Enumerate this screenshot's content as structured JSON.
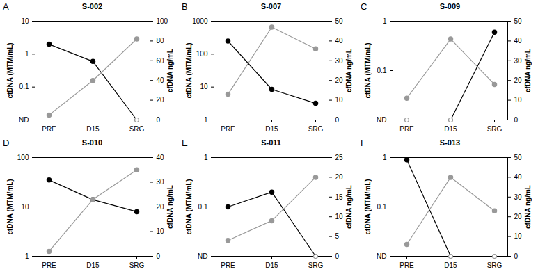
{
  "chart_data": [
    {
      "type": "line",
      "panel": "A",
      "title": "S-002",
      "log": "y",
      "categories": [
        "PRE",
        "D15",
        "SRG"
      ],
      "ylabel": "ctDNA (MTM/mL)",
      "y2label": "cfDNA ng/mL",
      "ylim": [
        0.01,
        10
      ],
      "yticks": [
        {
          "value": 0.01,
          "label": "ND"
        },
        0.1,
        1,
        10
      ],
      "y2lim": [
        0,
        100
      ],
      "y2ticks": [
        0,
        20,
        40,
        60,
        80,
        100
      ],
      "series": [
        {
          "color": "#000000",
          "marker": "circle",
          "line_style": "solid",
          "values": [
            2,
            0.6,
            0.01
          ]
        },
        {
          "color": "#999999",
          "marker": "circle",
          "line_style": "solid",
          "axis": "y2",
          "values": [
            5,
            40,
            82
          ]
        }
      ]
    },
    {
      "type": "line",
      "panel": "B",
      "title": "S-007",
      "log": "y",
      "categories": [
        "PRE",
        "D15",
        "SRG"
      ],
      "ylabel": "ctDNA (MTM/mL)",
      "y2label": "cfDNA ng/mL",
      "ylim": [
        1,
        1000
      ],
      "yticks": [
        1,
        10,
        100,
        1000
      ],
      "y2lim": [
        0,
        50
      ],
      "y2ticks": [
        0,
        10,
        20,
        30,
        40,
        50
      ],
      "series": [
        {
          "color": "#000000",
          "marker": "circle",
          "line_style": "solid",
          "values": [
            250,
            8.5,
            3.2
          ]
        },
        {
          "color": "#999999",
          "marker": "circle",
          "line_style": "solid",
          "axis": "y2",
          "values": [
            13,
            47,
            36
          ]
        }
      ]
    },
    {
      "type": "line",
      "panel": "C",
      "title": "S-009",
      "log": "y",
      "categories": [
        "PRE",
        "D15",
        "SRG"
      ],
      "ylabel": "ctDNA (MTM/mL)",
      "y2label": "cfDNA ng/mL",
      "ylim": [
        0.01,
        1
      ],
      "yticks": [
        {
          "value": 0.01,
          "label": "ND"
        },
        0.1,
        1
      ],
      "y2lim": [
        0,
        50
      ],
      "y2ticks": [
        0,
        10,
        20,
        30,
        40,
        50
      ],
      "series": [
        {
          "color": "#000000",
          "marker": "circle",
          "line_style": "solid",
          "values": [
            0.01,
            0.01,
            0.6
          ]
        },
        {
          "color": "#999999",
          "marker": "circle",
          "line_style": "solid",
          "axis": "y2",
          "values": [
            11,
            41,
            18
          ]
        }
      ]
    },
    {
      "type": "line",
      "panel": "D",
      "title": "S-010",
      "log": "y",
      "categories": [
        "PRE",
        "D15",
        "SRG"
      ],
      "ylabel": "ctDNA (MTM/mL)",
      "y2label": "cfDNA ng/mL",
      "ylim": [
        1,
        100
      ],
      "yticks": [
        1,
        10,
        100
      ],
      "y2lim": [
        0,
        40
      ],
      "y2ticks": [
        0,
        10,
        20,
        30,
        40
      ],
      "series": [
        {
          "color": "#000000",
          "marker": "circle",
          "line_style": "solid",
          "values": [
            35,
            14,
            8
          ]
        },
        {
          "color": "#999999",
          "marker": "circle",
          "line_style": "solid",
          "axis": "y2",
          "values": [
            2,
            23,
            35
          ]
        }
      ]
    },
    {
      "type": "line",
      "panel": "E",
      "title": "S-011",
      "log": "y",
      "categories": [
        "PRE",
        "D15",
        "SRG"
      ],
      "ylabel": "ctDNA (MTM/mL)",
      "y2label": "cfDNA ng/mL",
      "ylim": [
        0.01,
        1
      ],
      "yticks": [
        {
          "value": 0.01,
          "label": "ND"
        },
        0.1,
        1
      ],
      "y2lim": [
        0,
        25
      ],
      "y2ticks": [
        0,
        5,
        10,
        15,
        20,
        25
      ],
      "series": [
        {
          "color": "#000000",
          "marker": "circle",
          "line_style": "solid",
          "values": [
            0.1,
            0.2,
            0.01
          ]
        },
        {
          "color": "#999999",
          "marker": "circle",
          "line_style": "solid",
          "axis": "y2",
          "values": [
            4,
            9,
            20
          ]
        }
      ]
    },
    {
      "type": "line",
      "panel": "F",
      "title": "S-013",
      "log": "y",
      "categories": [
        "PRE",
        "D15",
        "SRG"
      ],
      "ylabel": "ctDNA (MTM/mL)",
      "y2label": "cfDNA ng/mL",
      "ylim": [
        0.01,
        1
      ],
      "yticks": [
        {
          "value": 0.01,
          "label": "ND"
        },
        0.1,
        1
      ],
      "y2lim": [
        0,
        50
      ],
      "y2ticks": [
        0,
        10,
        20,
        30,
        40,
        50
      ],
      "series": [
        {
          "color": "#000000",
          "marker": "circle",
          "line_style": "solid",
          "values": [
            0.9,
            0.01,
            0.01
          ]
        },
        {
          "color": "#999999",
          "marker": "circle",
          "line_style": "solid",
          "axis": "y2",
          "values": [
            6,
            40,
            23
          ]
        }
      ]
    }
  ]
}
